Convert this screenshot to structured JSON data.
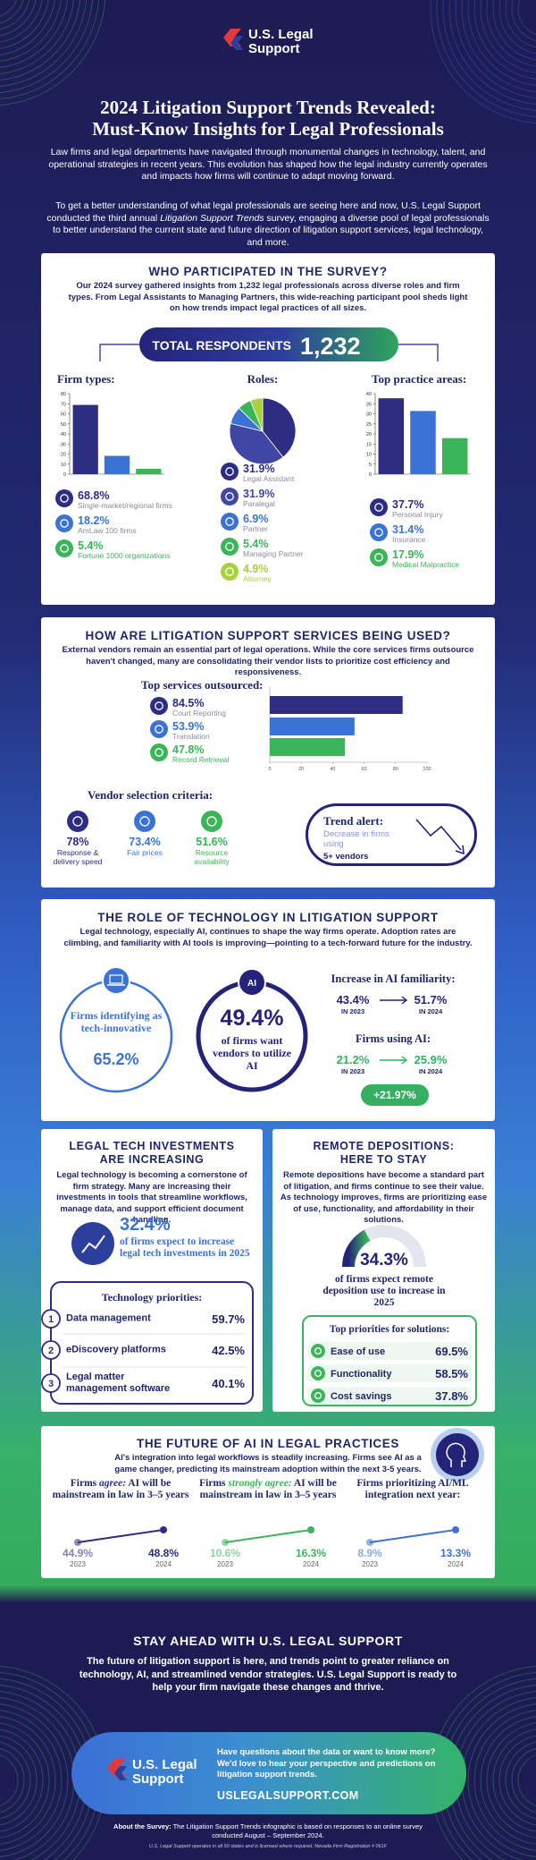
{
  "header": {
    "logo": [
      "U.S. Legal",
      "Support"
    ],
    "title": [
      "2024 Litigation Support Trends Revealed:",
      "Must-Know Insights for Legal Professionals"
    ],
    "intro": "Law firms and legal departments have navigated through monumental changes in technology, talent, and operational strategies in recent years. This evolution has shaped how the legal industry currently operates and impacts how firms will continue to adapt moving forward.",
    "intro2": [
      "To get a better understanding of what legal professionals are seeing here and now, U.S. Legal Support conducted the third annual ",
      "Litigation Support Trends",
      " survey, engaging a diverse pool of legal professionals to better understand the current state and future direction of litigation support services, legal technology, and more."
    ]
  },
  "participants": {
    "heading": "WHO PARTICIPATED IN THE SURVEY?",
    "text": "Our 2024 survey gathered insights from 1,232 legal professionals across diverse roles and firm types. From Legal Assistants to Managing Partners, this wide-reaching participant pool sheds light on how trends impact legal practices of all sizes.",
    "total_label": "TOTAL RESPONDENTS",
    "total": "1,232",
    "chart_data": [
      {
        "type": "bar",
        "title": "Firm types:",
        "categories": [
          "Single-market/regional firms",
          "AmLaw 100 firms",
          "Fortune 1000 organizations"
        ],
        "values": [
          68.8,
          18.2,
          5.4
        ],
        "value_labels": [
          "68.8%",
          "18.2%",
          "5.4%"
        ],
        "colors": [
          "#2d2e83",
          "#3b73d4",
          "#3cb45a"
        ],
        "ylim": [
          0,
          80
        ],
        "yticks": [
          0,
          10,
          20,
          30,
          40,
          50,
          60,
          70,
          80
        ]
      },
      {
        "type": "pie",
        "title": "Roles:",
        "categories": [
          "Legal Assistant",
          "Paralegal",
          "Partner",
          "Managing Partner",
          "Attorney"
        ],
        "values": [
          31.9,
          31.9,
          6.9,
          5.4,
          4.9
        ],
        "value_labels": [
          "31.9%",
          "31.9%",
          "6.9%",
          "5.4%",
          "4.9%"
        ],
        "colors": [
          "#2d2e83",
          "#3f46a3",
          "#3b73d4",
          "#3cb45a",
          "#a8d13b"
        ]
      },
      {
        "type": "bar",
        "title": "Top practice areas:",
        "categories": [
          "Personal Injury",
          "Insurance",
          "Medical Malpractice"
        ],
        "values": [
          37.7,
          31.4,
          17.9
        ],
        "value_labels": [
          "37.7%",
          "31.4%",
          "17.9%"
        ],
        "colors": [
          "#2d2e83",
          "#3b73d4",
          "#3cb45a"
        ],
        "ylim": [
          0,
          40
        ],
        "yticks": [
          0,
          5,
          10,
          15,
          20,
          25,
          30,
          35,
          40
        ]
      }
    ]
  },
  "services": {
    "heading": "HOW ARE LITIGATION SUPPORT SERVICES BEING USED?",
    "text": "External vendors remain an essential part of legal operations. While the core services firms outsource haven't changed, many are consolidating their vendor lists to prioritize cost efficiency and responsiveness.",
    "chart_data": [
      {
        "type": "barh",
        "title": "Top services outsourced:",
        "categories": [
          "Court Reporting",
          "Translation",
          "Record Retrieval"
        ],
        "values": [
          84.5,
          53.9,
          47.8
        ],
        "value_labels": [
          "84.5%",
          "53.9%",
          "47.8%"
        ],
        "colors": [
          "#2d2e83",
          "#3b73d4",
          "#3cb45a"
        ],
        "xlim": [
          0,
          100
        ],
        "xticks": [
          0,
          20,
          40,
          60,
          80,
          100
        ]
      },
      {
        "type": "stat",
        "title": "Vendor selection criteria:",
        "categories": [
          "Response & delivery speed",
          "Fair prices",
          "Resource availability"
        ],
        "values": [
          "78%",
          "73.4%",
          "51.6%"
        ],
        "colors": [
          "#2d2e83",
          "#3b73d4",
          "#3cb45a"
        ]
      }
    ],
    "trend": {
      "title": "Trend alert:",
      "text": "Decrease in firms using",
      "highlight": "5+ vendors"
    }
  },
  "technology": {
    "heading": "THE ROLE OF TECHNOLOGY IN LITIGATION SUPPORT",
    "text": "Legal technology, especially AI, continues to shape the way firms operate. Adoption rates are climbing, and familiarity with AI tools is improving—pointing to a tech-forward future for the industry.",
    "innovative": {
      "label": "Firms identifying as tech-innovative",
      "value": "65.2%"
    },
    "vendors_ai": {
      "badge": "AI",
      "value": "49.4%",
      "label": "of firms want vendors to utilize AI"
    },
    "familiarity": {
      "title": "Increase in AI familiarity:",
      "values": [
        "43.4%",
        "51.7%"
      ],
      "years": [
        "IN 2023",
        "IN 2024"
      ]
    },
    "using": {
      "title": "Firms using AI:",
      "values": [
        "21.2%",
        "25.9%"
      ],
      "years": [
        "IN 2023",
        "IN 2024"
      ],
      "change": "+21.97%"
    }
  },
  "investments": {
    "heading": [
      "LEGAL TECH INVESTMENTS",
      "ARE INCREASING"
    ],
    "text": "Legal technology is becoming a cornerstone of firm strategy. Many are increasing their investments in tools that streamline workflows, manage data, and support efficient document handling.",
    "stat": {
      "value": "32.4%",
      "label": "of firms expect to increase legal tech investments in 2025"
    },
    "priorities": {
      "title": "Technology priorities:",
      "numbers": [
        "1",
        "2",
        "3"
      ],
      "items": [
        "Data management",
        "eDiscovery platforms",
        "Legal matter management software"
      ],
      "values": [
        "59.7%",
        "42.5%",
        "40.1%"
      ]
    }
  },
  "depositions": {
    "heading": [
      "REMOTE DEPOSITIONS:",
      "HERE TO STAY"
    ],
    "text": "Remote depositions have become a standard part of litigation, and firms continue to see their value. As technology improves, firms are prioritizing ease of use, functionality, and affordability in their solutions.",
    "gauge": {
      "value": 34.3,
      "value_label": "34.3%",
      "label": "of firms expect remote deposition use to increase in 2025"
    },
    "priorities": {
      "title": "Top priorities for solutions:",
      "items": [
        "Ease of use",
        "Functionality",
        "Cost savings"
      ],
      "values": [
        "69.5%",
        "58.5%",
        "37.8%"
      ]
    }
  },
  "future": {
    "heading": "THE FUTURE OF AI IN LEGAL PRACTICES",
    "text": "AI's integration into legal workflows is steadily increasing. Firms see AI as a game changer, predicting its mainstream adoption within the next 3-5 years.",
    "chart_data": [
      {
        "type": "line",
        "title": [
          "Firms ",
          "agree:",
          " AI will be mainstream in law in 3–5 years"
        ],
        "categories": [
          "2023",
          "2024"
        ],
        "values": [
          44.9,
          48.8
        ],
        "value_labels": [
          "44.9%",
          "48.8%"
        ],
        "color": "#2d2e83"
      },
      {
        "type": "line",
        "title": [
          "Firms ",
          "strongly agree:",
          " AI will be mainstream in law in 3–5 years"
        ],
        "categories": [
          "2023",
          "2024"
        ],
        "values": [
          10.6,
          16.3
        ],
        "value_labels": [
          "10.6%",
          "16.3%"
        ],
        "color": "#3cb45a"
      },
      {
        "type": "line",
        "title": [
          "Firms prioritizing AI/ML integration next year:"
        ],
        "categories": [
          "2023",
          "2024"
        ],
        "values": [
          8.9,
          13.3
        ],
        "value_labels": [
          "8.9%",
          "13.3%"
        ],
        "color": "#3b73d4"
      }
    ]
  },
  "footer": {
    "heading": "STAY AHEAD WITH U.S. LEGAL SUPPORT",
    "text": "The future of litigation support is here, and trends point to greater reliance on technology, AI, and streamlined vendor strategies. U.S. Legal Support is ready to help your firm navigate these changes and thrive.",
    "logo": [
      "U.S. Legal",
      "Support"
    ],
    "cta": "Have questions about the data or want to know more? We'd love to hear your perspective and predictions on litigation support trends.",
    "url": "USLEGALSUPPORT.COM",
    "about": [
      "About the Survey:",
      " The Litigation Support Trends infographic is based on responses to an online survey conducted August – September 2024."
    ],
    "legal": "U.S. Legal Support operates in all 50 states and is licensed where required. Nevada Firm Registration # 061F"
  }
}
